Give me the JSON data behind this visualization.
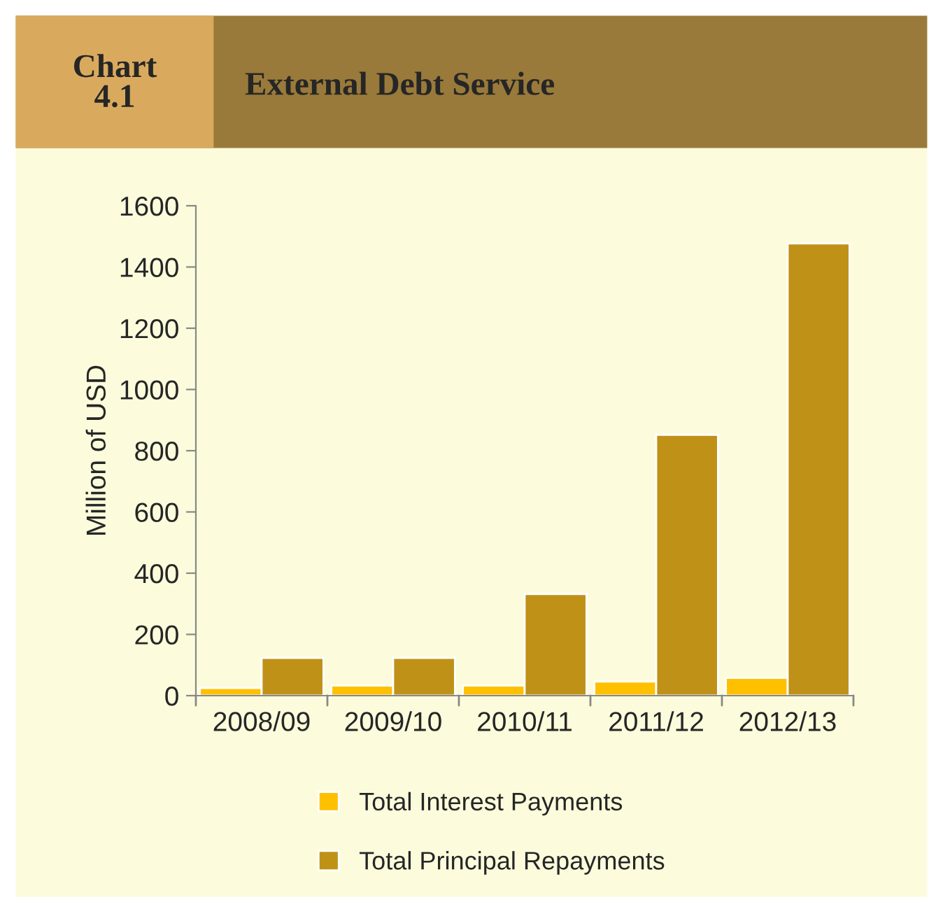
{
  "chart_data": {
    "type": "bar",
    "title": "External Debt Service",
    "annotations": [
      "Chart\n4.1"
    ],
    "ylabel": "Million of USD",
    "categories": [
      "2008/09",
      "2009/10",
      "2010/11",
      "2011/12",
      "2012/13"
    ],
    "series": [
      {
        "name": "Total Interest Payments",
        "color": "#ffc000",
        "values": [
          25,
          33,
          33,
          46,
          58
        ]
      },
      {
        "name": "Total Principal Repayments",
        "color": "#bf9116",
        "values": [
          123,
          123,
          332,
          852,
          1477
        ]
      }
    ],
    "ylim": [
      0,
      1600
    ],
    "yticks": [
      0,
      200,
      400,
      600,
      800,
      1000,
      1200,
      1400,
      1600
    ],
    "grid": false,
    "legend": "bottom"
  }
}
